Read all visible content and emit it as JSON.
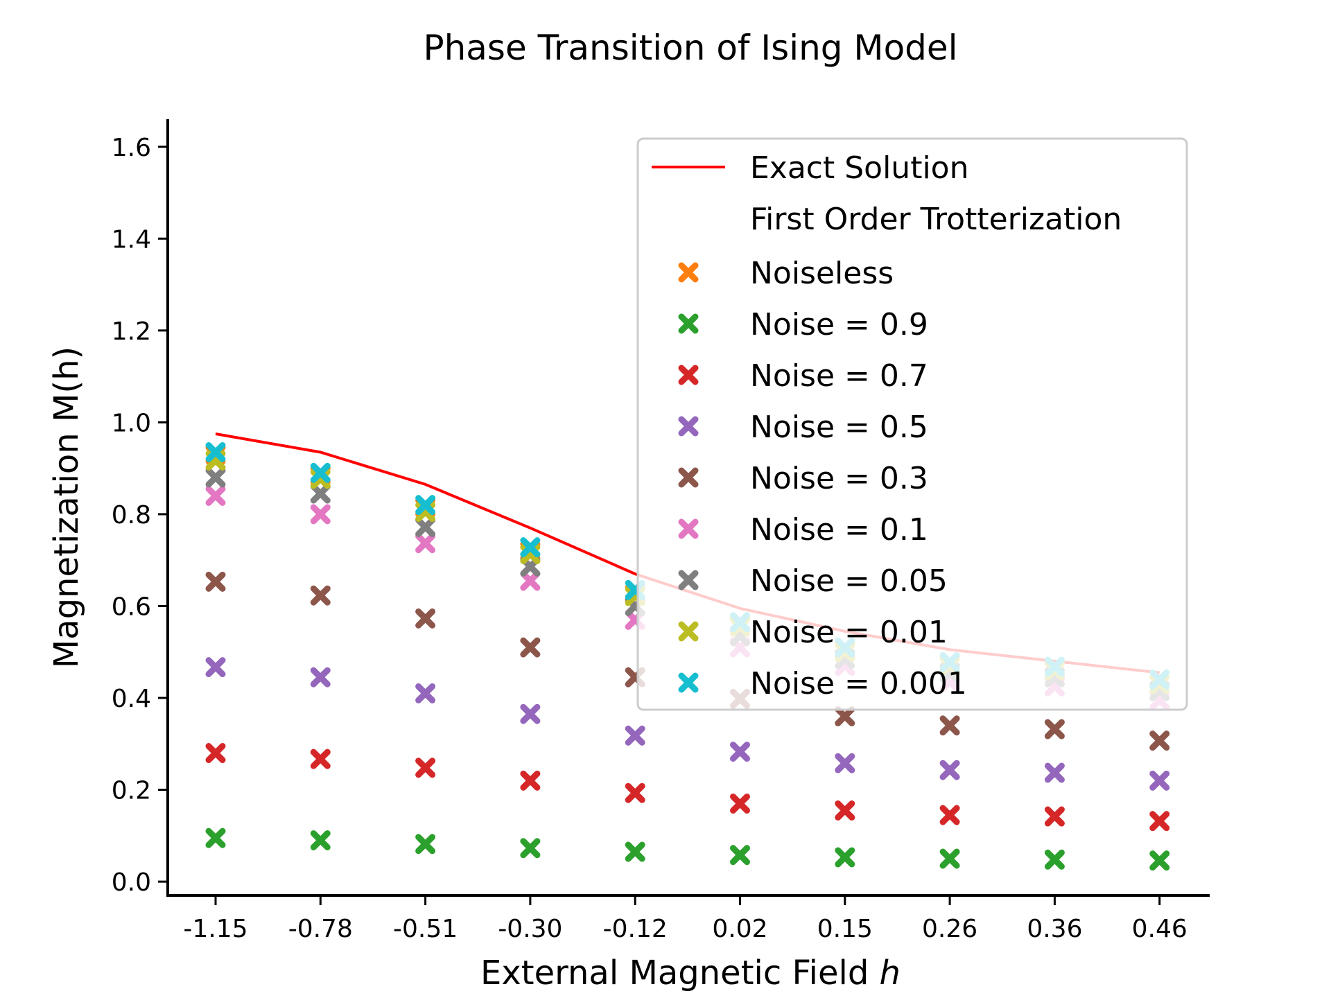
{
  "chart_data": {
    "type": "scatter",
    "title": "Phase Transition of Ising Model",
    "xlabel_text": "External Magnetic Field ",
    "xlabel_var": "h",
    "ylabel": "Magnetization M(h)",
    "categories": [
      "-1.15",
      "-0.78",
      "-0.51",
      "-0.30",
      "-0.12",
      "0.02",
      "0.15",
      "0.26",
      "0.36",
      "0.46"
    ],
    "ylim": [
      -0.03,
      1.66
    ],
    "yticks": [
      "0.0",
      "0.2",
      "0.4",
      "0.6",
      "0.8",
      "1.0",
      "1.2",
      "1.4",
      "1.6"
    ],
    "ytick_values": [
      0.0,
      0.2,
      0.4,
      0.6,
      0.8,
      1.0,
      1.2,
      1.4,
      1.6
    ],
    "grid": false,
    "legend_position": "top-right",
    "legend_header": "First Order Trotterization",
    "line": {
      "name": "Exact Solution",
      "color": "#ff0000",
      "values": [
        0.975,
        0.935,
        0.865,
        0.77,
        0.67,
        0.595,
        0.545,
        0.505,
        0.48,
        0.455
      ]
    },
    "series": [
      {
        "name": "Noiseless",
        "color": "#ff7f0e",
        "values": [
          0.93,
          0.885,
          0.815,
          0.72,
          0.625,
          0.56,
          0.505,
          0.475,
          0.465,
          0.44
        ]
      },
      {
        "name": "Noise = 0.9",
        "color": "#2ca02c",
        "values": [
          0.095,
          0.09,
          0.082,
          0.073,
          0.065,
          0.058,
          0.053,
          0.05,
          0.048,
          0.046
        ]
      },
      {
        "name": "Noise = 0.7",
        "color": "#d62728",
        "values": [
          0.28,
          0.267,
          0.248,
          0.22,
          0.193,
          0.17,
          0.155,
          0.145,
          0.142,
          0.132
        ]
      },
      {
        "name": "Noise = 0.5",
        "color": "#9467bd",
        "values": [
          0.467,
          0.445,
          0.41,
          0.365,
          0.318,
          0.283,
          0.258,
          0.243,
          0.237,
          0.22
        ]
      },
      {
        "name": "Noise = 0.3",
        "color": "#8c564b",
        "values": [
          0.653,
          0.623,
          0.573,
          0.51,
          0.445,
          0.398,
          0.36,
          0.34,
          0.332,
          0.307
        ]
      },
      {
        "name": "Noise = 0.1",
        "color": "#e377c2",
        "values": [
          0.84,
          0.8,
          0.737,
          0.655,
          0.57,
          0.51,
          0.47,
          0.435,
          0.425,
          0.395
        ]
      },
      {
        "name": "Noise = 0.05",
        "color": "#7f7f7f",
        "values": [
          0.88,
          0.845,
          0.772,
          0.686,
          0.6,
          0.535,
          0.485,
          0.455,
          0.445,
          0.415
        ]
      },
      {
        "name": "Noise = 0.01",
        "color": "#bcbd22",
        "values": [
          0.917,
          0.877,
          0.805,
          0.713,
          0.622,
          0.555,
          0.5,
          0.47,
          0.46,
          0.43
        ]
      },
      {
        "name": "Noise = 0.001",
        "color": "#17becf",
        "values": [
          0.935,
          0.89,
          0.82,
          0.728,
          0.635,
          0.565,
          0.51,
          0.478,
          0.468,
          0.44
        ]
      }
    ]
  }
}
